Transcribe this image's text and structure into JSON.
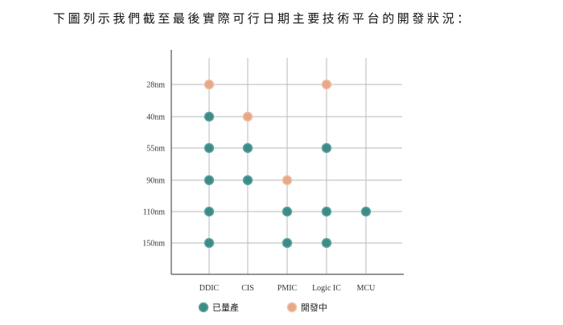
{
  "heading": "下圖列示我們截至最後實際可行日期主要技術平台的開發狀況：",
  "colors": {
    "in_production": "#3d8a86",
    "in_production_stroke": "#5fa7a3",
    "in_development": "#e6a888",
    "in_development_stroke": "#f0c0a5",
    "grid": "#b8b8b8",
    "axis": "#555555"
  },
  "chart_data": {
    "type": "scatter",
    "title": "",
    "xlabel": "",
    "ylabel": "",
    "categories": [
      "DDIC",
      "CIS",
      "PMIC",
      "Logic IC",
      "MCU"
    ],
    "process_nodes": [
      "28nm",
      "40nm",
      "55nm",
      "90nm",
      "110nm",
      "150nm"
    ],
    "grid": true,
    "legend_position": "bottom",
    "series": [
      {
        "name": "已量產",
        "color_key": "in_production",
        "points": [
          {
            "x": "DDIC",
            "y": "40nm"
          },
          {
            "x": "DDIC",
            "y": "55nm"
          },
          {
            "x": "DDIC",
            "y": "90nm"
          },
          {
            "x": "DDIC",
            "y": "110nm"
          },
          {
            "x": "DDIC",
            "y": "150nm"
          },
          {
            "x": "CIS",
            "y": "55nm"
          },
          {
            "x": "CIS",
            "y": "90nm"
          },
          {
            "x": "PMIC",
            "y": "110nm"
          },
          {
            "x": "PMIC",
            "y": "150nm"
          },
          {
            "x": "Logic IC",
            "y": "55nm"
          },
          {
            "x": "Logic IC",
            "y": "110nm"
          },
          {
            "x": "Logic IC",
            "y": "150nm"
          },
          {
            "x": "MCU",
            "y": "110nm"
          }
        ]
      },
      {
        "name": "開發中",
        "color_key": "in_development",
        "points": [
          {
            "x": "DDIC",
            "y": "28nm"
          },
          {
            "x": "CIS",
            "y": "40nm"
          },
          {
            "x": "PMIC",
            "y": "90nm"
          },
          {
            "x": "Logic IC",
            "y": "28nm"
          }
        ]
      }
    ]
  }
}
